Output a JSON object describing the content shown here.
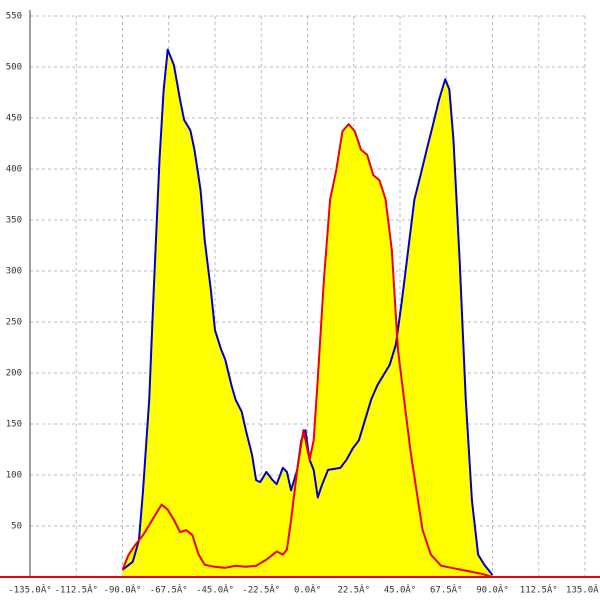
{
  "chart_data": {
    "type": "area",
    "xlim": [
      -135,
      135
    ],
    "ylim": [
      0,
      550
    ],
    "xticks": [
      {
        "value": -135,
        "label": "-135.0Â°"
      },
      {
        "value": -112.5,
        "label": "-112.5Â°"
      },
      {
        "value": -90,
        "label": "-90.0Â°"
      },
      {
        "value": -67.5,
        "label": "-67.5Â°"
      },
      {
        "value": -45,
        "label": "-45.0Â°"
      },
      {
        "value": -22.5,
        "label": "-22.5Â°"
      },
      {
        "value": 0,
        "label": "0.0Â°"
      },
      {
        "value": 22.5,
        "label": "22.5Â°"
      },
      {
        "value": 45,
        "label": "45.0Â°"
      },
      {
        "value": 67.5,
        "label": "67.5Â°"
      },
      {
        "value": 90,
        "label": "90.0Â°"
      },
      {
        "value": 112.5,
        "label": "112.5Â°"
      },
      {
        "value": 135,
        "label": "135.0Â°"
      }
    ],
    "yticks": [
      50,
      100,
      150,
      200,
      250,
      300,
      350,
      400,
      450,
      500,
      550
    ],
    "grid": true,
    "fill_color": "#ffff00",
    "series": [
      {
        "color": "#0000cc",
        "x": [
          -90,
          -85,
          -82,
          -80,
          -77,
          -75,
          -72,
          -70,
          -68,
          -65,
          -62,
          -60,
          -57,
          -55,
          -52,
          -50,
          -47,
          -45,
          -42,
          -40,
          -37,
          -35,
          -32,
          -30,
          -27,
          -25,
          -23,
          -20,
          -17,
          -15,
          -12,
          -10,
          -8,
          -5,
          -3,
          -1,
          1,
          3,
          5,
          7,
          10,
          13,
          16,
          19,
          22,
          25,
          28,
          31,
          34,
          37,
          40,
          43,
          46,
          49,
          52,
          55,
          58,
          61,
          64,
          67,
          69,
          71,
          74,
          77,
          80,
          83,
          86,
          90
        ],
        "values": [
          7,
          15,
          36,
          85,
          174,
          272,
          409,
          477,
          517,
          502,
          468,
          448,
          438,
          419,
          379,
          330,
          281,
          242,
          223,
          213,
          188,
          174,
          162,
          144,
          120,
          95,
          93,
          103,
          95,
          91,
          107,
          103,
          85,
          105,
          134,
          144,
          115,
          105,
          78,
          90,
          105,
          106,
          107,
          115,
          126,
          134,
          154,
          174,
          188,
          198,
          208,
          228,
          272,
          321,
          370,
          394,
          419,
          443,
          468,
          488,
          478,
          429,
          311,
          174,
          75,
          22,
          12,
          2
        ]
      },
      {
        "color": "#ee0000",
        "x": [
          -90,
          -87,
          -84,
          -80,
          -77,
          -74,
          -71,
          -68,
          -65,
          -62,
          -59,
          -56,
          -53,
          -50,
          -45,
          -40,
          -35,
          -30,
          -25,
          -20,
          -15,
          -12,
          -10,
          -8,
          -5,
          -2,
          1,
          3,
          5,
          8,
          11,
          14,
          17,
          20,
          23,
          26,
          29,
          32,
          35,
          38,
          41,
          44,
          47,
          50,
          53,
          56,
          60,
          65,
          70,
          75,
          80,
          85,
          90
        ],
        "values": [
          7,
          22,
          31,
          41,
          51,
          61,
          71,
          66,
          56,
          44,
          46,
          41,
          22,
          12,
          10,
          9,
          11,
          10,
          11,
          17,
          25,
          22,
          27,
          56,
          105,
          144,
          115,
          134,
          194,
          292,
          370,
          399,
          437,
          444,
          437,
          419,
          414,
          394,
          389,
          370,
          321,
          223,
          174,
          125,
          85,
          46,
          22,
          11,
          9,
          7,
          5,
          3,
          0
        ]
      }
    ]
  }
}
